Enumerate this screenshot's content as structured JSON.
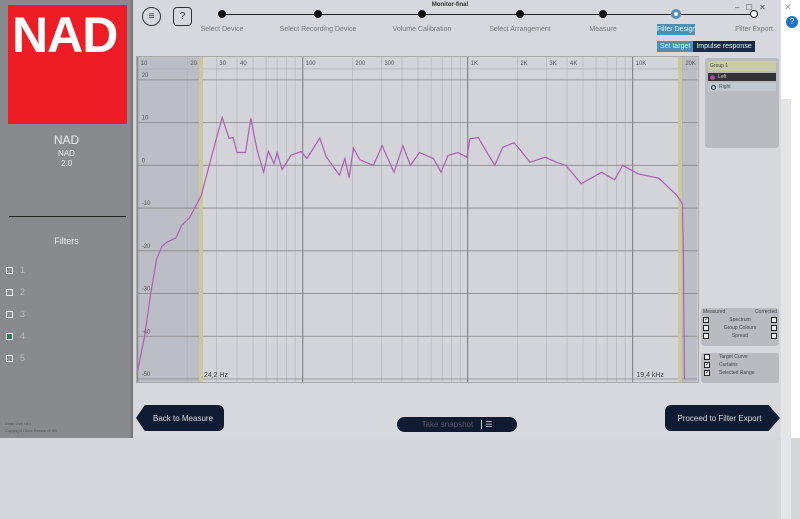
{
  "window": {
    "title": "Monitor-final",
    "controls": "– ☐ ✕"
  },
  "sidebar": {
    "logo": "NAD",
    "brand": "NAD",
    "model": "NAD",
    "version": "2.0",
    "filters_title": "Filters",
    "filters": [
      {
        "label": "1",
        "checked": false
      },
      {
        "label": "2",
        "checked": false
      },
      {
        "label": "3",
        "checked": false
      },
      {
        "label": "4",
        "checked": true
      },
      {
        "label": "5",
        "checked": false
      }
    ],
    "footer1": "Dirac Live v3.x",
    "footer2": "Copyright Dirac Research AB"
  },
  "toolbar": {
    "menu_icon": "≡",
    "help_icon": "?"
  },
  "steps": [
    {
      "label": "Select Device",
      "state": "done"
    },
    {
      "label": "Select Recording Device",
      "state": "done"
    },
    {
      "label": "Volume Calibration",
      "state": "done"
    },
    {
      "label": "Select Arrangement",
      "state": "done"
    },
    {
      "label": "Measure",
      "state": "done"
    },
    {
      "label": "Filter Design",
      "state": "active"
    },
    {
      "label": "Filter Export",
      "state": "todo"
    }
  ],
  "subtabs": [
    {
      "label": "Set target",
      "active": true
    },
    {
      "label": "Impulse response",
      "active": false
    }
  ],
  "chart_data": {
    "type": "line",
    "x_scale": "log",
    "xlim": [
      10,
      20000
    ],
    "ylim": [
      -50,
      20
    ],
    "grid": true,
    "x_ticks": [
      "10",
      "20",
      "30",
      "40",
      "100",
      "200",
      "300",
      "1K",
      "2K",
      "3K",
      "4K",
      "10K",
      "20K"
    ],
    "x_tick_values": [
      10,
      20,
      30,
      40,
      100,
      200,
      300,
      1000,
      2000,
      3000,
      4000,
      10000,
      20000
    ],
    "y_ticks": [
      "20",
      "10",
      "0",
      "-10",
      "-20",
      "-30",
      "-40",
      "-50"
    ],
    "y_tick_values": [
      20,
      10,
      0,
      -10,
      -20,
      -30,
      -40,
      -50
    ],
    "range_low": "24,2 Hz",
    "range_high": "19,4 kHz",
    "range_low_value": 24.2,
    "range_high_value": 19400,
    "line_color": "#b05cb8",
    "series": [
      {
        "points": [
          [
            10,
            -48
          ],
          [
            11,
            -40
          ],
          [
            12,
            -30
          ],
          [
            13,
            -22
          ],
          [
            14,
            -19
          ],
          [
            15,
            -18
          ],
          [
            17,
            -17
          ],
          [
            18.5,
            -14
          ],
          [
            20.6,
            -12.3
          ],
          [
            24.3,
            -7
          ],
          [
            28,
            2
          ],
          [
            32.5,
            11.2
          ],
          [
            35.8,
            6.3
          ],
          [
            37.8,
            6.5
          ],
          [
            40,
            3
          ],
          [
            45,
            3
          ],
          [
            48.5,
            11
          ],
          [
            53,
            3.5
          ],
          [
            58,
            -1.6
          ],
          [
            62,
            3.3
          ],
          [
            67,
            0.4
          ],
          [
            70,
            3
          ],
          [
            75,
            -1
          ],
          [
            85,
            2.4
          ],
          [
            98,
            3.2
          ],
          [
            106,
            1.6
          ],
          [
            127,
            6.4
          ],
          [
            139,
            2
          ],
          [
            167,
            -2.3
          ],
          [
            180,
            1.6
          ],
          [
            191,
            -2.9
          ],
          [
            203,
            4
          ],
          [
            222,
            1.3
          ],
          [
            268,
            0
          ],
          [
            303,
            4.6
          ],
          [
            358,
            -1.6
          ],
          [
            405,
            4.6
          ],
          [
            450,
            0
          ],
          [
            510,
            3
          ],
          [
            620,
            1.6
          ],
          [
            690,
            -1.6
          ],
          [
            760,
            2.3
          ],
          [
            870,
            3
          ],
          [
            990,
            1.9
          ],
          [
            1030,
            6.2
          ],
          [
            1160,
            6.5
          ],
          [
            1290,
            3.4
          ],
          [
            1460,
            0
          ],
          [
            1630,
            4.2
          ],
          [
            1910,
            5.3
          ],
          [
            2100,
            3.4
          ],
          [
            2390,
            0.7
          ],
          [
            2950,
            1.9
          ],
          [
            3450,
            0.7
          ],
          [
            3930,
            0
          ],
          [
            4880,
            -4.3
          ],
          [
            6480,
            -1.6
          ],
          [
            7770,
            -3.4
          ],
          [
            8700,
            0
          ],
          [
            10800,
            -2
          ],
          [
            14400,
            -3
          ],
          [
            18500,
            -7
          ],
          [
            20000,
            -9
          ],
          [
            20300,
            -20
          ],
          [
            20600,
            -50
          ]
        ]
      }
    ]
  },
  "panel": {
    "group": "Group 1",
    "channels": [
      {
        "label": "Left",
        "color": "#a24aa8",
        "selected": true
      },
      {
        "label": "Right",
        "selected": false
      }
    ],
    "measured_label": "Measured",
    "corrected_label": "Corrected",
    "rows": [
      {
        "label": "Spectrum",
        "measured": true,
        "corrected": false
      },
      {
        "label": "Group Colours",
        "measured": false,
        "corrected": false
      },
      {
        "label": "Spread",
        "measured": false,
        "corrected": false
      }
    ],
    "options": [
      {
        "label": "Target Curve",
        "checked": false
      },
      {
        "label": "Curtains",
        "checked": true
      },
      {
        "label": "Selected Range",
        "checked": true
      }
    ]
  },
  "bottom": {
    "back": "Back to Measure",
    "snapshot": "Take snapshot",
    "proceed": "Proceed to Filter Export"
  }
}
